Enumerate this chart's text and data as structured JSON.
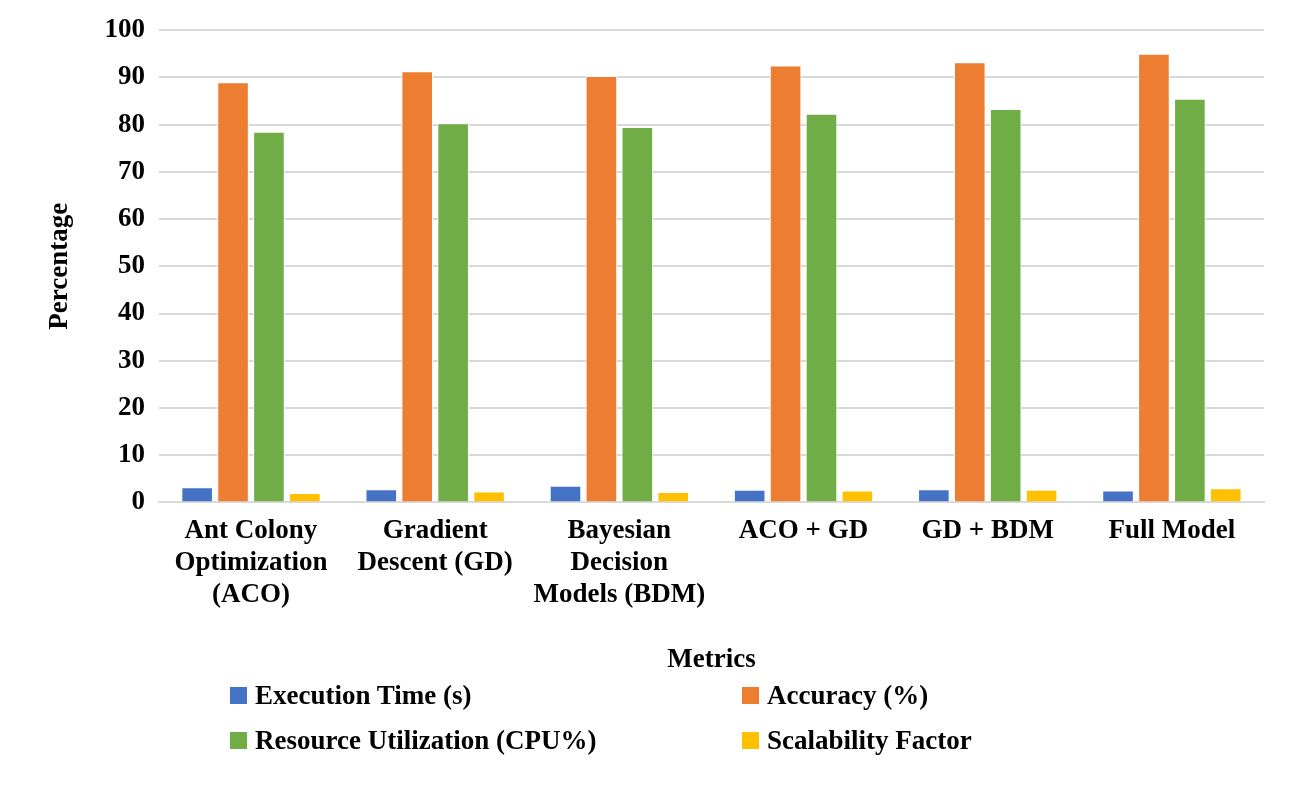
{
  "chart_data": {
    "type": "bar",
    "xlabel": "Metrics",
    "ylabel": "Percentage",
    "categories": [
      "Ant Colony Optimization (ACO)",
      "Gradient Descent (GD)",
      "Bayesian Decision Models (BDM)",
      "ACO + GD",
      "GD + BDM",
      "Full Model"
    ],
    "series": [
      {
        "name": "Execution Time (s)",
        "color": "#4472c4",
        "values": [
          3.2,
          2.8,
          3.5,
          2.7,
          2.8,
          2.5
        ]
      },
      {
        "name": "Accuracy (%)",
        "color": "#ed7d31",
        "values": [
          89.0,
          91.3,
          90.3,
          92.5,
          93.2,
          95.0
        ]
      },
      {
        "name": "Resource Utilization (CPU%)",
        "color": "#70ad47",
        "values": [
          78.5,
          80.3,
          79.5,
          82.3,
          83.3,
          85.5
        ]
      },
      {
        "name": "Scalability Factor",
        "color": "#ffc000",
        "values": [
          2.0,
          2.3,
          2.2,
          2.5,
          2.7,
          3.0
        ]
      }
    ],
    "ylim": [
      0,
      100
    ],
    "yticks": [
      0,
      10,
      20,
      30,
      40,
      50,
      60,
      70,
      80,
      90,
      100
    ],
    "grid": "y",
    "legend": "bottom"
  }
}
